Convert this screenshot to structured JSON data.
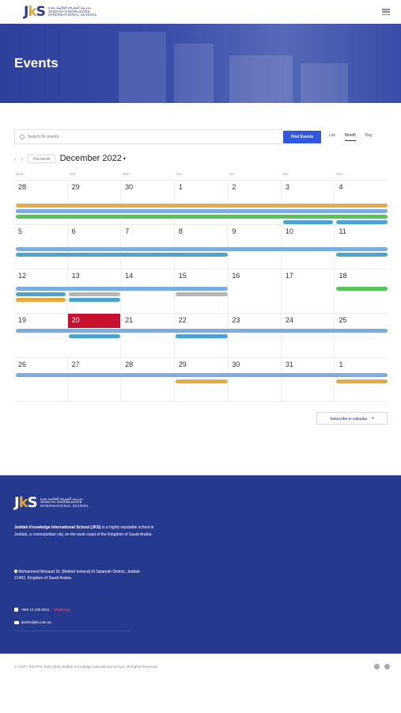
{
  "header": {
    "logo_mark_a": "J",
    "logo_mark_k": "k",
    "logo_mark_b": "S",
    "logo_line1": "مدرسة المعرفة العالمية بجدة",
    "logo_line2": "JEDDAH KNOWLEDGE",
    "logo_line3": "INTERNATIONAL SCHOOL"
  },
  "hero": {
    "title": "Events"
  },
  "toolbar": {
    "search_placeholder": "Search for events",
    "find_label": "Find Events",
    "views": [
      "List",
      "Month",
      "Day"
    ],
    "active_view": "Month"
  },
  "nav": {
    "this_month": "This Month",
    "month": "December 2022"
  },
  "calendar": {
    "weekdays": [
      "MON",
      "TUE",
      "WED",
      "THU",
      "FRI",
      "SAT",
      "SUN"
    ],
    "weeks": [
      [
        "28",
        "29",
        "30",
        "1",
        "2",
        "3",
        "4"
      ],
      [
        "5",
        "6",
        "7",
        "8",
        "9",
        "10",
        "11"
      ],
      [
        "12",
        "13",
        "14",
        "15",
        "16",
        "17",
        "18"
      ],
      [
        "19",
        "20",
        "21",
        "22",
        "23",
        "24",
        "25"
      ],
      [
        "26",
        "27",
        "28",
        "29",
        "30",
        "31",
        "1"
      ]
    ],
    "today_week": 3,
    "today_col": 1
  },
  "subscribe": {
    "label": "Subscribe to calendar",
    "caret": "▾"
  },
  "footer": {
    "about_bold": "Jeddah Knowledge International School (JKS)",
    "about_rest": " is a highly reputable school in Jeddah, a cosmopolitan city, on the west coast of the Kingdom of Saudi Arabia.",
    "address": "Mohammed Mosaud St. (Behind Iceland) Al Salamah District, Jeddah 21462, Kingdom of Saudi Arabia.",
    "phone": "+966 12 236 8331 ,",
    "whatsapp": "WhatsApp",
    "email": "jksinfo@jks.edu.sa"
  },
  "bottom": {
    "copyright": "© COPY RIGHTS 2022-2023 Jeddah Knowledge International School. All Rights Reserved."
  },
  "colors": {
    "brand_blue": "#27388f",
    "find_button": "#3358e0",
    "today": "#c8102e",
    "event_orange": "#e5ad41",
    "event_blue": "#7aaee2",
    "event_green": "#55c656",
    "event_teal": "#4ba4cf"
  }
}
